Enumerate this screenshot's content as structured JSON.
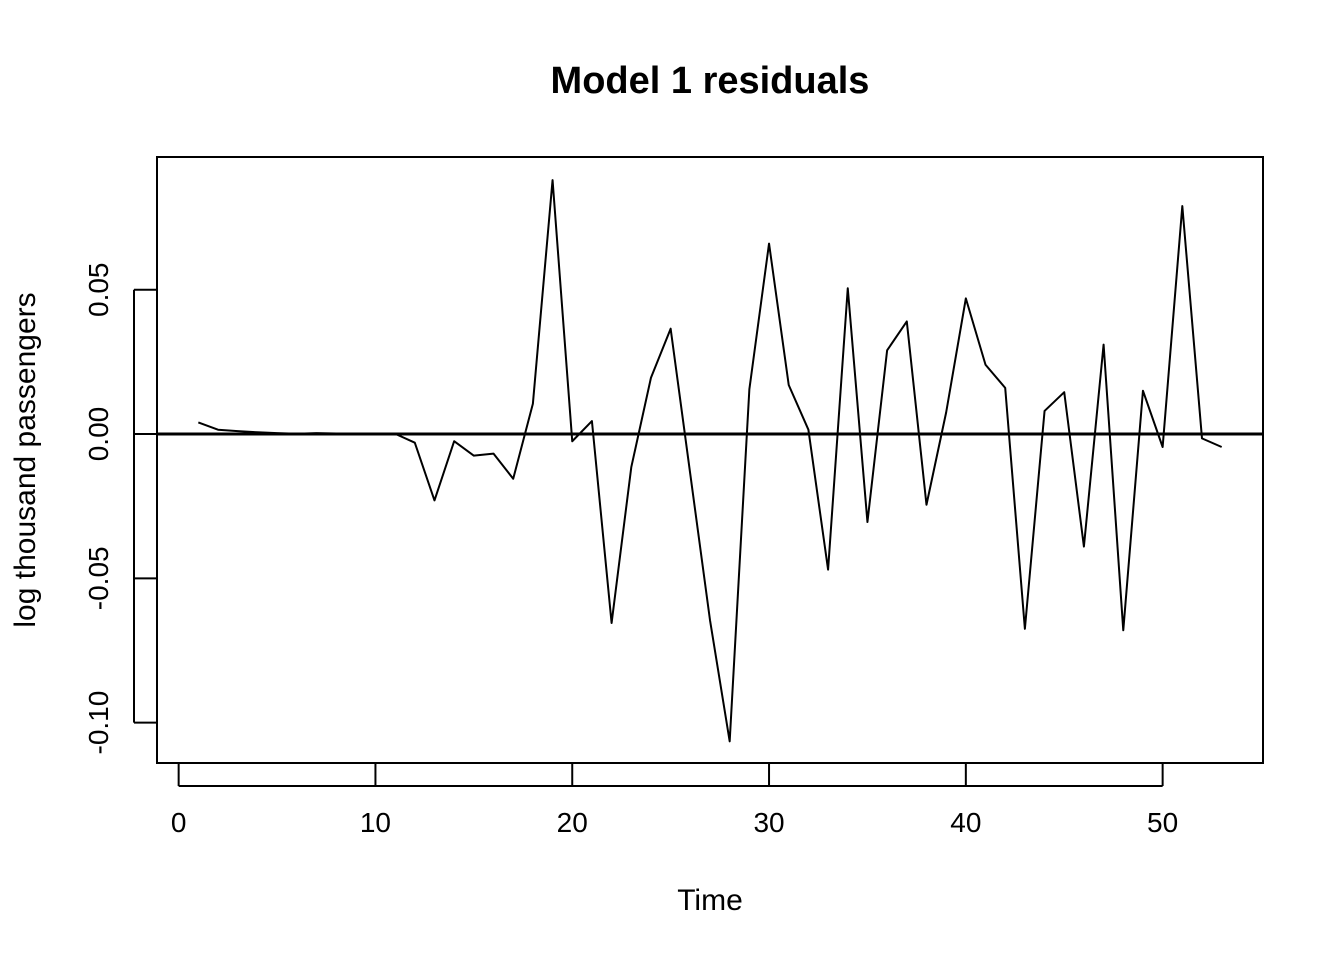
{
  "chart_data": {
    "type": "line",
    "title": "Model 1 residuals",
    "xlabel": "Time",
    "ylabel": "log thousand passengers",
    "xlim": [
      -1.1,
      55.1
    ],
    "ylim": [
      -0.114,
      0.096
    ],
    "x_ticks": [
      0,
      10,
      20,
      30,
      40,
      50
    ],
    "x_tick_labels": [
      "0",
      "10",
      "20",
      "30",
      "40",
      "50"
    ],
    "y_ticks": [
      -0.1,
      -0.05,
      0.0,
      0.05
    ],
    "y_tick_labels": [
      "-0.10",
      "-0.05",
      "0.00",
      "0.05"
    ],
    "reference_line": {
      "y": 0
    },
    "grid": false,
    "series": [
      {
        "x": [
          1,
          2,
          3,
          4,
          5,
          6,
          7,
          8,
          9,
          10,
          11,
          12,
          13,
          14,
          15,
          16,
          17,
          18,
          19,
          20,
          21,
          22,
          23,
          24,
          25,
          26,
          27,
          28,
          29,
          30,
          31,
          32,
          33,
          34,
          35,
          36,
          37,
          38,
          39,
          40,
          41,
          42,
          43,
          44,
          45,
          46,
          47,
          48,
          49,
          50,
          51,
          52,
          53
        ],
        "values": [
          0.004,
          0.0015,
          0.001,
          0.0006,
          0.0003,
          0.0001,
          0.0003,
          0.0002,
          0.0001,
          0.0001,
          0.0001,
          -0.003,
          -0.023,
          -0.0025,
          -0.0075,
          -0.0068,
          -0.0155,
          0.0105,
          0.088,
          -0.0025,
          0.0045,
          -0.0655,
          -0.0115,
          0.0195,
          0.0365,
          -0.014,
          -0.0645,
          -0.1065,
          0.0155,
          0.066,
          0.017,
          0.0015,
          -0.047,
          0.0505,
          -0.0305,
          0.029,
          0.039,
          -0.0245,
          0.0075,
          0.047,
          0.024,
          0.016,
          -0.0675,
          0.008,
          0.0145,
          -0.039,
          0.031,
          -0.068,
          0.015,
          -0.0045,
          0.079,
          -0.0015,
          -0.0045
        ]
      }
    ],
    "colors": {
      "line": "#000000",
      "axis": "#000000"
    }
  }
}
